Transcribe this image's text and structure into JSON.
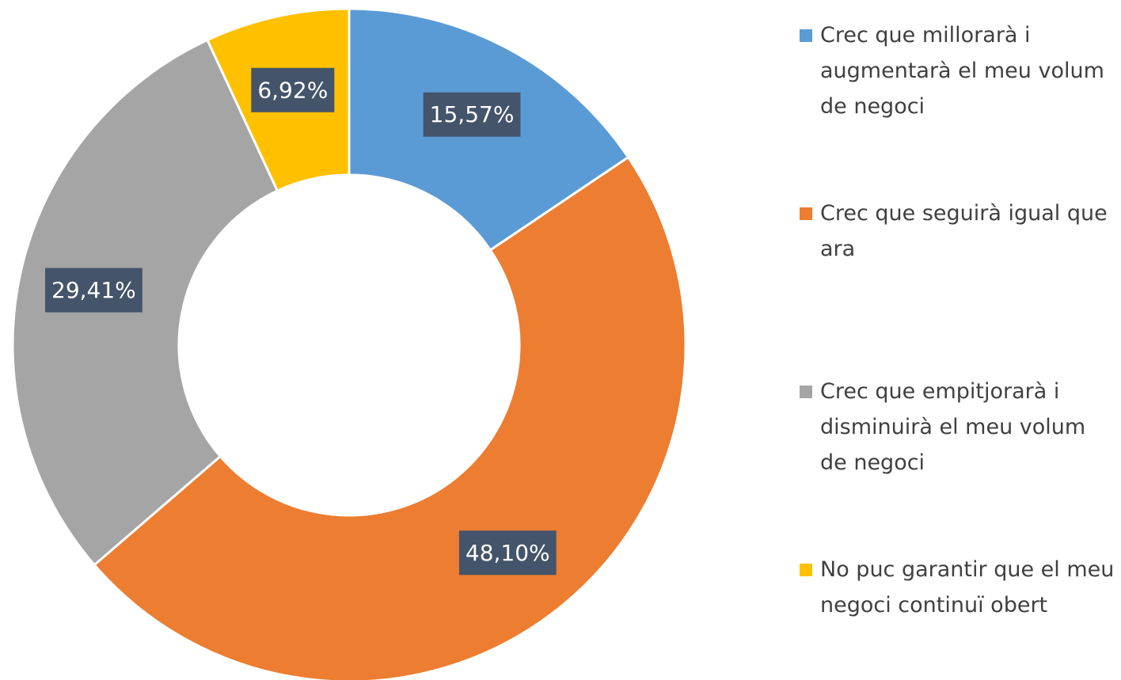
{
  "chart_data": {
    "type": "donut",
    "categories": [
      "Crec que millorarà i augmentarà el meu volum de negoci",
      "Crec que seguirà igual que ara",
      "Crec que empitjorarà i disminuirà el meu volum de negoci",
      "No puc garantir que el meu negoci continuï obert"
    ],
    "values": [
      15.57,
      48.1,
      29.41,
      6.92
    ],
    "value_labels": [
      "15,57%",
      "48,10%",
      "29,41%",
      "6,92%"
    ],
    "colors": [
      "#5b9bd5",
      "#ed7d31",
      "#a5a5a5",
      "#ffc000"
    ],
    "legend": "right"
  }
}
